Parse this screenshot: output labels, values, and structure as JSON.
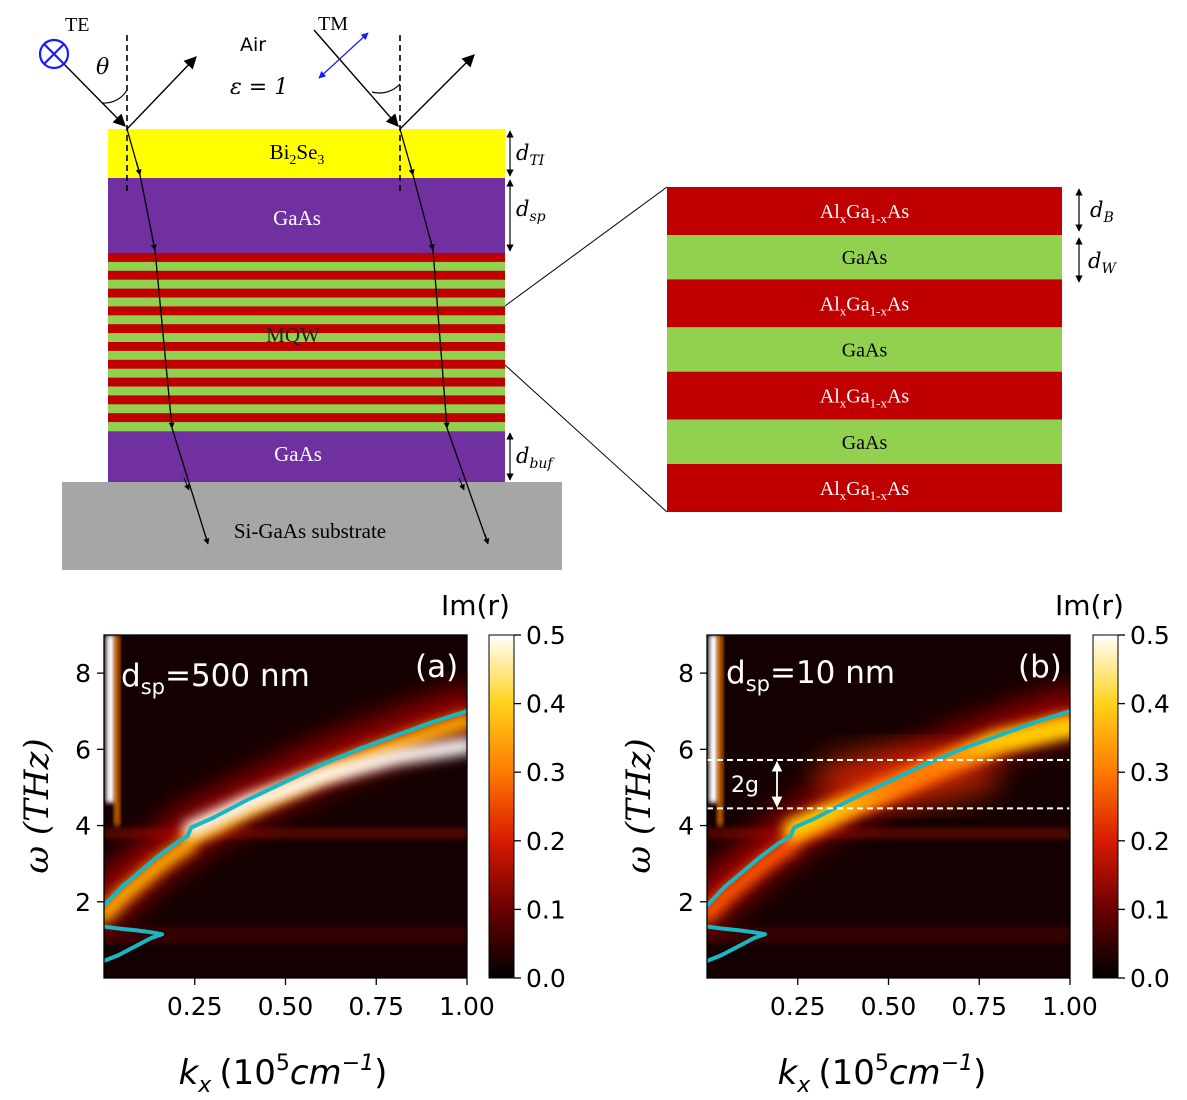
{
  "schematic": {
    "te_label": "TE",
    "tm_label": "TM",
    "theta_label": "θ",
    "air_label": "Air",
    "epsilon_label": "ε = 1",
    "layers": {
      "ti_base": "Bi",
      "ti_sub1": "2",
      "ti_mid": "Se",
      "ti_sub2": "3",
      "spacer": "GaAs",
      "mqw": "MQW",
      "buffer": "GaAs",
      "substrate": "Si-GaAs substrate"
    },
    "thickness_labels": {
      "d_ti": "d",
      "d_ti_sub": "TI",
      "d_sp": "d",
      "d_sp_sub": "sp",
      "d_buf": "d",
      "d_buf_sub": "buf"
    },
    "colors": {
      "ti": "#ffff00",
      "gaas": "#7030a0",
      "barrier": "#c00000",
      "well": "#92d050",
      "substrate": "#a6a6a6"
    }
  },
  "zoom": {
    "layers": [
      {
        "kind": "barrier",
        "a": "Al",
        "x1": "x",
        "b": "Ga",
        "x2": "1-x",
        "c": "As"
      },
      {
        "kind": "well",
        "text": "GaAs"
      },
      {
        "kind": "barrier",
        "a": "Al",
        "x1": "x",
        "b": "Ga",
        "x2": "1-x",
        "c": "As"
      },
      {
        "kind": "well",
        "text": "GaAs"
      },
      {
        "kind": "barrier",
        "a": "Al",
        "x1": "x",
        "b": "Ga",
        "x2": "1-x",
        "c": "As"
      },
      {
        "kind": "well",
        "text": "GaAs"
      },
      {
        "kind": "barrier",
        "a": "Al",
        "x1": "x",
        "b": "Ga",
        "x2": "1-x",
        "c": "As"
      }
    ],
    "d_b": "d",
    "d_b_sub": "B",
    "d_w": "d",
    "d_w_sub": "W"
  },
  "chart_data": [
    {
      "type": "heatmap",
      "panel_label": "(a)",
      "annotation": "d",
      "annotation_sub": "sp",
      "annotation_value": "=500 nm",
      "xlabel": "k",
      "xlabel_sub": "x",
      "xlabel_unit_pre": "(10",
      "xlabel_sup": "5",
      "xlabel_unit": "cm",
      "xlabel_unit_sup": "−1",
      "xlabel_close": ")",
      "ylabel": "ω (THz)",
      "xlim": [
        0.0,
        1.0
      ],
      "ylim": [
        0.0,
        9.0
      ],
      "x_ticks": [
        "0.25",
        "0.50",
        "0.75",
        "1.00"
      ],
      "y_ticks": [
        "2",
        "4",
        "6",
        "8"
      ],
      "colorbar": {
        "label": "Im(r)",
        "ticks": [
          "0.0",
          "0.1",
          "0.2",
          "0.3",
          "0.4",
          "0.5"
        ],
        "range": [
          0.0,
          0.5
        ]
      },
      "dispersion_curve": {
        "x": [
          0.0,
          0.05,
          0.1,
          0.15,
          0.2,
          0.23,
          0.24,
          0.3,
          0.4,
          0.5,
          0.6,
          0.7,
          0.8,
          0.9,
          1.0
        ],
        "y": [
          1.9,
          2.4,
          2.8,
          3.2,
          3.55,
          3.72,
          3.95,
          4.2,
          4.7,
          5.15,
          5.6,
          6.0,
          6.35,
          6.7,
          7.0
        ]
      },
      "low_band_curve": {
        "x": [
          0.0,
          0.04,
          0.09,
          0.13,
          0.16,
          0.13,
          0.09,
          0.04,
          0.0
        ],
        "y": [
          0.45,
          0.6,
          0.85,
          1.05,
          1.15,
          1.2,
          1.25,
          1.3,
          1.35
        ]
      },
      "resonance_branch": {
        "x": [
          0.24,
          0.4,
          0.6,
          0.8,
          1.0
        ],
        "y": [
          3.9,
          4.6,
          5.3,
          5.8,
          6.1
        ],
        "brightness": 0.5
      },
      "hline_gap": null
    },
    {
      "type": "heatmap",
      "panel_label": "(b)",
      "annotation": "d",
      "annotation_sub": "sp",
      "annotation_value": "=10 nm",
      "xlabel": "k",
      "xlabel_sub": "x",
      "xlabel_unit_pre": "(10",
      "xlabel_sup": "5",
      "xlabel_unit": "cm",
      "xlabel_unit_sup": "−1",
      "xlabel_close": ")",
      "ylabel": "ω (THz)",
      "xlim": [
        0.0,
        1.0
      ],
      "ylim": [
        0.0,
        9.0
      ],
      "x_ticks": [
        "0.25",
        "0.50",
        "0.75",
        "1.00"
      ],
      "y_ticks": [
        "2",
        "4",
        "6",
        "8"
      ],
      "colorbar": {
        "label": "Im(r)",
        "ticks": [
          "0.0",
          "0.1",
          "0.2",
          "0.3",
          "0.4",
          "0.5"
        ],
        "range": [
          0.0,
          0.5
        ]
      },
      "dispersion_curve": {
        "x": [
          0.0,
          0.05,
          0.1,
          0.15,
          0.2,
          0.23,
          0.24,
          0.3,
          0.4,
          0.5,
          0.6,
          0.7,
          0.8,
          0.9,
          1.0
        ],
        "y": [
          1.9,
          2.4,
          2.8,
          3.2,
          3.55,
          3.72,
          3.95,
          4.2,
          4.7,
          5.15,
          5.6,
          6.0,
          6.35,
          6.7,
          7.0
        ]
      },
      "low_band_curve": {
        "x": [
          0.0,
          0.04,
          0.09,
          0.13,
          0.16,
          0.13,
          0.09,
          0.04,
          0.0
        ],
        "y": [
          0.45,
          0.6,
          0.85,
          1.05,
          1.15,
          1.2,
          1.25,
          1.3,
          1.35
        ]
      },
      "resonance_branch": {
        "x": [
          0.24,
          0.4,
          0.6,
          0.8,
          1.0
        ],
        "y": [
          3.9,
          4.6,
          5.4,
          6.2,
          6.6
        ],
        "brightness": 0.3
      },
      "hline_gap": {
        "y_low": 4.45,
        "y_high": 5.72,
        "label": "2g"
      }
    }
  ]
}
